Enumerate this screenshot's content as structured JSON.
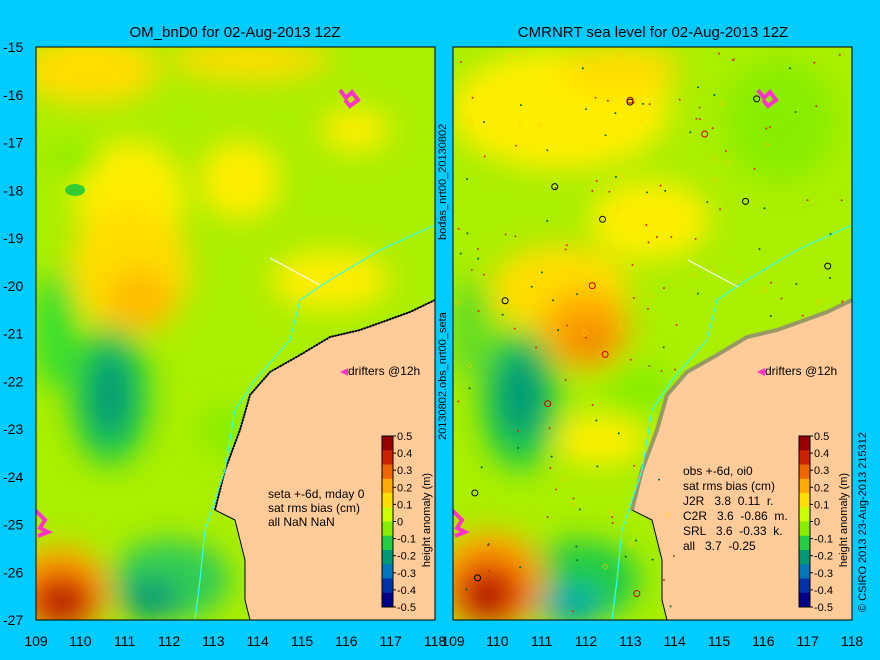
{
  "left_panel": {
    "title": "OM_bnD0 for 02-Aug-2013 12Z",
    "stats_lines": [
      "seta +-6d, mday 0",
      "sat rms bias (cm)",
      "all NaN NaN"
    ],
    "drifters_label": "drifters @12h"
  },
  "right_panel": {
    "title": "CMRNRT sea level  for 02-Aug-2013 12Z",
    "stats_lines": [
      "obs +-6d, oi0",
      "sat rms bias (cm)",
      "J2R   3.8  0.11  r.",
      "C2R   3.6  -0.86  m.",
      "SRL   3.6  -0.33  k.",
      "all   3.7  -0.25"
    ],
    "drifters_label": "drifters @12h"
  },
  "center_labels": {
    "top": "bodas_nrt00_20130802",
    "bottom": "20130802.obs_nrt00_seta"
  },
  "right_edge_label": "© CSIRO 2013   23-Aug-2013 215312",
  "axes": {
    "x_ticks": [
      "109",
      "110",
      "111",
      "112",
      "113",
      "114",
      "115",
      "116",
      "117",
      "118"
    ],
    "y_ticks": [
      "-15",
      "-16",
      "-17",
      "-18",
      "-19",
      "-20",
      "-21",
      "-22",
      "-23",
      "-24",
      "-25",
      "-26",
      "-27"
    ]
  },
  "colorbar": {
    "title": "height anomaly (m)",
    "ticks": [
      "0.5",
      "0.4",
      "0.3",
      "0.2",
      "0.1",
      "0",
      "-0.1",
      "-0.2",
      "-0.3",
      "-0.4",
      "-0.5"
    ],
    "colors": [
      "#990000",
      "#cc2200",
      "#ee6600",
      "#ffaa00",
      "#ffdd00",
      "#ccff00",
      "#88ee00",
      "#22cc44",
      "#009977",
      "#0077bb",
      "#0033aa",
      "#000088"
    ]
  },
  "colors": {
    "background": "#00ccff",
    "land": "#ffcc99",
    "drifter": "#ff33cc",
    "shelf_line": "#33ffee"
  }
}
